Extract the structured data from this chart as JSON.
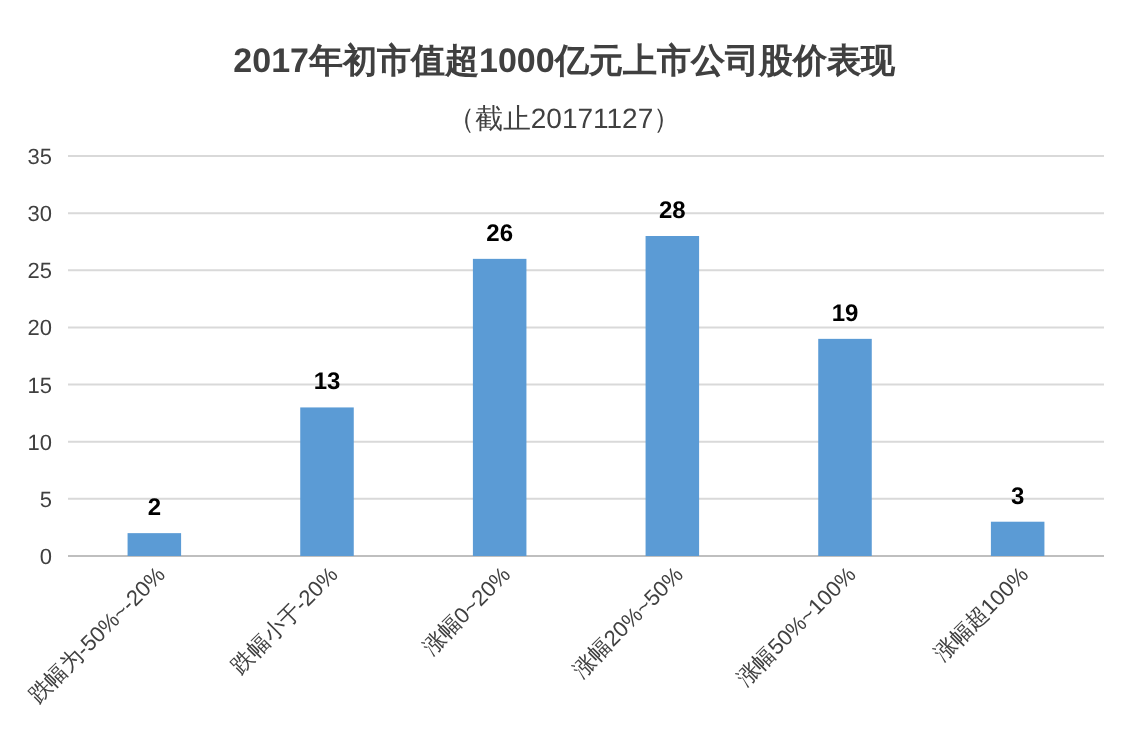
{
  "chart_data": {
    "type": "bar",
    "title": "2017年初市值超1000亿元上市公司股价表现",
    "subtitle": "（截止20171127）",
    "categories": [
      "跌幅为-50%~-20%",
      "跌幅小于-20%",
      "涨幅0~20%",
      "涨幅20%~50%",
      "涨幅50%~100%",
      "涨幅超100%"
    ],
    "values": [
      2,
      13,
      26,
      28,
      19,
      3
    ],
    "color": "#5b9bd5",
    "ylim": [
      0,
      35
    ],
    "yticks": [
      0,
      5,
      10,
      15,
      20,
      25,
      30,
      35
    ],
    "grid": "y",
    "data_labels": true
  }
}
